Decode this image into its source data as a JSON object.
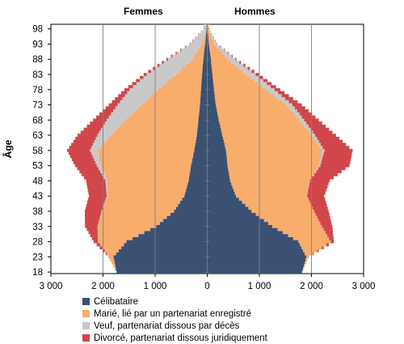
{
  "chart_data": {
    "type": "population-pyramid",
    "left_title": "Femmes",
    "right_title": "Hommes",
    "ylabel": "Âge",
    "xlim": [
      -3000,
      3000
    ],
    "ylim": [
      18,
      99
    ],
    "x_ticks": [
      -3000,
      -2000,
      -1000,
      0,
      1000,
      2000,
      3000
    ],
    "x_tick_labels": [
      "3 000",
      "2 000",
      "1 000",
      "0",
      "1 000",
      "2 000",
      "3 000"
    ],
    "y_ticks": [
      18,
      23,
      28,
      33,
      38,
      43,
      48,
      53,
      58,
      63,
      68,
      73,
      78,
      83,
      88,
      93,
      98
    ],
    "grid": "vertical",
    "legend_position": "bottom",
    "series": [
      {
        "name": "Célibataire",
        "color": "#3b5173"
      },
      {
        "name": "Marié, lié par un partenariat enregistré",
        "color": "#f8ad6d"
      },
      {
        "name": "Veuf, partenariat dissous par décès",
        "color": "#c9c9c9"
      },
      {
        "name": "Divorcé, partenariat dissous juridiquement",
        "color": "#d0464b"
      }
    ],
    "ages": [
      18,
      23,
      28,
      33,
      38,
      43,
      48,
      53,
      58,
      63,
      68,
      73,
      78,
      83,
      88,
      93,
      98
    ],
    "women": {
      "celibataire": [
        1740,
        1800,
        1550,
        980,
        640,
        440,
        360,
        310,
        250,
        200,
        170,
        140,
        120,
        100,
        75,
        40,
        12
      ],
      "marie": [
        0,
        80,
        550,
        1120,
        1380,
        1470,
        1560,
        1740,
        1850,
        1650,
        1400,
        1120,
        820,
        500,
        210,
        60,
        8
      ],
      "veuf": [
        0,
        0,
        0,
        5,
        10,
        20,
        35,
        70,
        150,
        260,
        360,
        460,
        550,
        560,
        470,
        230,
        45
      ],
      "divorce": [
        0,
        10,
        80,
        240,
        320,
        340,
        370,
        420,
        440,
        380,
        260,
        170,
        100,
        60,
        30,
        10,
        2
      ]
    },
    "men": {
      "celibataire": [
        1820,
        1900,
        1750,
        1250,
        850,
        550,
        440,
        390,
        360,
        290,
        220,
        165,
        130,
        100,
        70,
        30,
        8
      ],
      "marie": [
        0,
        40,
        620,
        950,
        1200,
        1360,
        1520,
        1760,
        1850,
        1720,
        1550,
        1350,
        1000,
        650,
        320,
        100,
        15
      ],
      "veuf": [
        0,
        0,
        0,
        0,
        0,
        5,
        10,
        20,
        40,
        60,
        90,
        120,
        160,
        180,
        150,
        60,
        10
      ],
      "divorce": [
        0,
        5,
        60,
        200,
        280,
        330,
        380,
        560,
        540,
        400,
        280,
        180,
        110,
        60,
        20,
        6,
        1
      ]
    }
  }
}
